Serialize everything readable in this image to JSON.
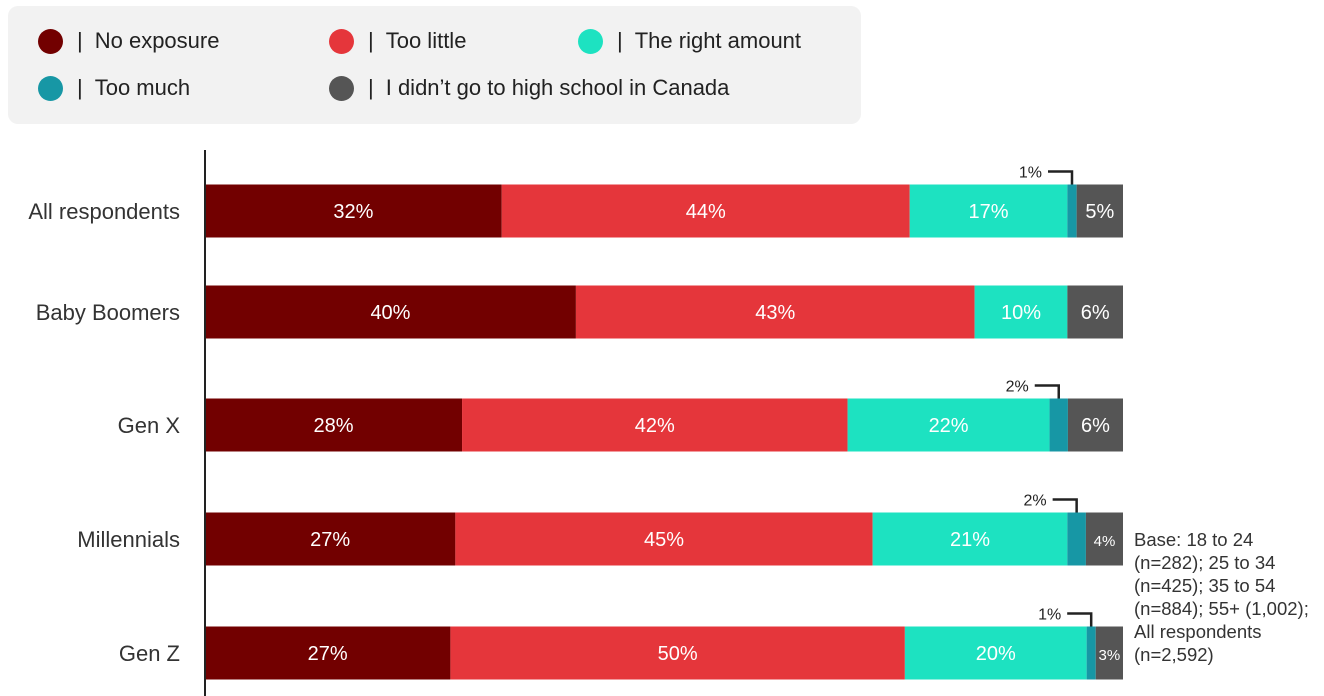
{
  "legend": {
    "items": [
      {
        "label": "No exposure",
        "color": "#720000"
      },
      {
        "label": "Too little",
        "color": "#e5363b"
      },
      {
        "label": "The right amount",
        "color": "#1de2c1"
      },
      {
        "label": "Too much",
        "color": "#1797a5"
      },
      {
        "label": "I didn’t go to high school in Canada",
        "color": "#555555"
      }
    ],
    "separator": "|"
  },
  "base_note": "Base: 18 to 24 (n=282); 25 to 34 (n=425); 35 to 54 (n=884); 55+ (1,002); All respondents (n=2,592)",
  "chart_data": {
    "type": "bar",
    "orientation": "horizontal",
    "stacked": true,
    "title": "",
    "xlabel": "",
    "ylabel": "",
    "categories": [
      "All respondents",
      "Baby Boomers",
      "Gen X",
      "Millennials",
      "Gen Z"
    ],
    "series": [
      {
        "name": "No exposure",
        "color": "#720000",
        "values": [
          32,
          40,
          28,
          27,
          27
        ]
      },
      {
        "name": "Too little",
        "color": "#e5363b",
        "values": [
          44,
          43,
          42,
          45,
          50
        ]
      },
      {
        "name": "The right amount",
        "color": "#1de2c1",
        "values": [
          17,
          10,
          22,
          21,
          20
        ]
      },
      {
        "name": "Too much",
        "color": "#1797a5",
        "values": [
          1,
          0,
          2,
          2,
          1
        ]
      },
      {
        "name": "I didn’t go to high school in Canada",
        "color": "#555555",
        "values": [
          5,
          6,
          6,
          4,
          3
        ]
      }
    ],
    "value_labels": [
      [
        "32%",
        "44%",
        "17%",
        "1%",
        "5%"
      ],
      [
        "40%",
        "43%",
        "10%",
        "",
        "6%"
      ],
      [
        "28%",
        "42%",
        "22%",
        "2%",
        "6%"
      ],
      [
        "27%",
        "45%",
        "21%",
        "2%",
        "4%"
      ],
      [
        "27%",
        "50%",
        "20%",
        "1%",
        "3%"
      ]
    ],
    "grid": false,
    "legend_position": "top-left"
  }
}
